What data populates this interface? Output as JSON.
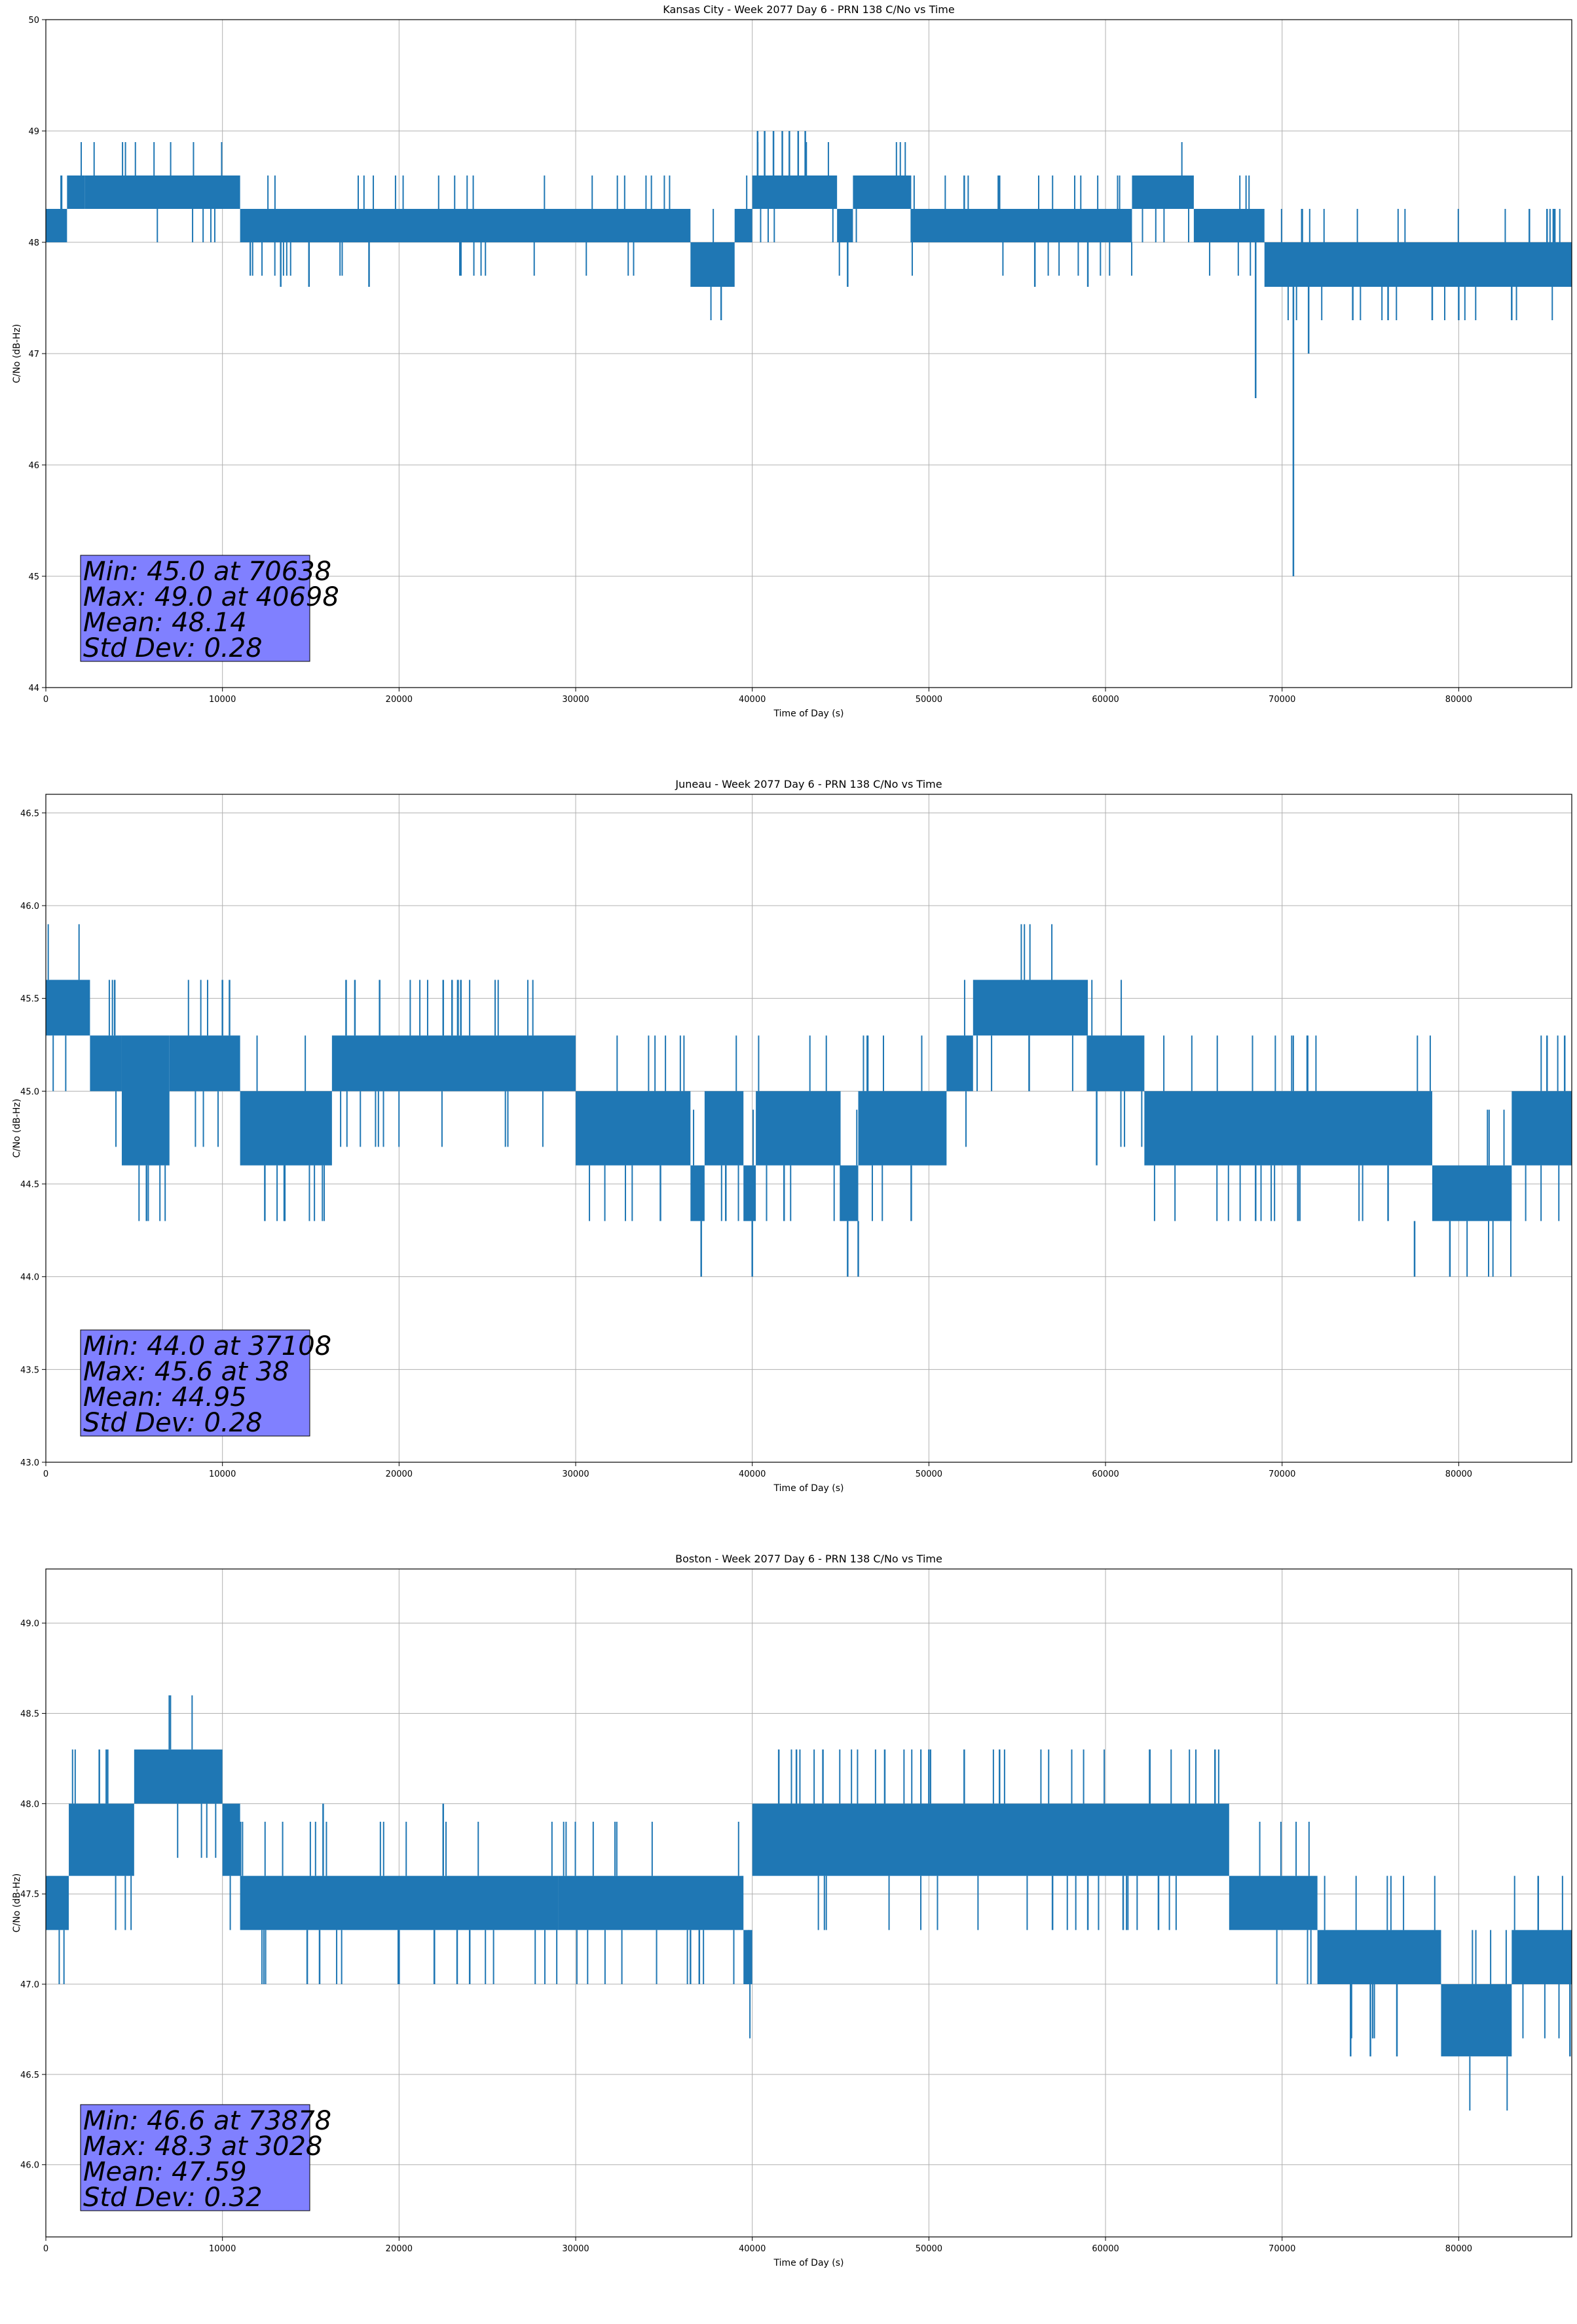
{
  "chart_data": [
    {
      "type": "line",
      "title": "Kansas City - Week 2077 Day 6 - PRN 138 C/No vs Time",
      "xlabel": "Time of Day (s)",
      "ylabel": "C/No (dB-Hz)",
      "xlim": [
        0,
        86400
      ],
      "ylim": [
        44,
        50
      ],
      "xticks": [
        0,
        10000,
        20000,
        30000,
        40000,
        50000,
        60000,
        70000,
        80000
      ],
      "xtick_labels": [
        "0",
        "10000",
        "20000",
        "30000",
        "40000",
        "50000",
        "60000",
        "70000",
        "80000"
      ],
      "yticks": [
        44,
        45,
        46,
        47,
        48,
        49,
        50
      ],
      "ytick_labels": [
        "44",
        "45",
        "46",
        "47",
        "48",
        "49",
        "50"
      ],
      "grid": true,
      "color": "#1f77b4",
      "stats_box_color": "#8080ff",
      "stats": [
        "Min: 45.0 at 70638",
        "Max: 49.0 at 40698",
        "Mean: 48.14",
        "Std Dev: 0.28"
      ],
      "bands": [
        {
          "x": [
            0,
            1200
          ],
          "lo": 48.0,
          "hi": 48.3
        },
        {
          "x": [
            1200,
            2200
          ],
          "lo": 48.3,
          "hi": 48.6
        },
        {
          "x": [
            2200,
            11000
          ],
          "lo": 48.3,
          "hi": 48.6
        },
        {
          "x": [
            11000,
            31000
          ],
          "lo": 48.0,
          "hi": 48.3
        },
        {
          "x": [
            31000,
            36500
          ],
          "lo": 48.0,
          "hi": 48.3
        },
        {
          "x": [
            36500,
            39000
          ],
          "lo": 47.6,
          "hi": 48.0
        },
        {
          "x": [
            39000,
            40000
          ],
          "lo": 48.0,
          "hi": 48.3
        },
        {
          "x": [
            40000,
            44800
          ],
          "lo": 48.3,
          "hi": 48.6
        },
        {
          "x": [
            44800,
            45700
          ],
          "lo": 48.0,
          "hi": 48.3
        },
        {
          "x": [
            45700,
            49000
          ],
          "lo": 48.3,
          "hi": 48.6
        },
        {
          "x": [
            49000,
            61500
          ],
          "lo": 48.0,
          "hi": 48.3
        },
        {
          "x": [
            61500,
            65000
          ],
          "lo": 48.3,
          "hi": 48.6
        },
        {
          "x": [
            65000,
            69000
          ],
          "lo": 48.0,
          "hi": 48.3
        },
        {
          "x": [
            69000,
            86400
          ],
          "lo": 47.6,
          "hi": 48.0
        }
      ],
      "spikes": [
        {
          "x": 40300,
          "from": 48.6,
          "to": 49.0
        },
        {
          "x": 40700,
          "from": 48.6,
          "to": 49.0
        },
        {
          "x": 41200,
          "from": 48.6,
          "to": 49.0
        },
        {
          "x": 41700,
          "from": 48.6,
          "to": 49.0
        },
        {
          "x": 42100,
          "from": 48.6,
          "to": 49.0
        },
        {
          "x": 42600,
          "from": 48.6,
          "to": 49.0
        },
        {
          "x": 43000,
          "from": 48.6,
          "to": 49.0
        },
        {
          "x": 68500,
          "from": 48.0,
          "to": 46.6
        },
        {
          "x": 70638,
          "from": 47.6,
          "to": 45.0
        },
        {
          "x": 71500,
          "from": 47.6,
          "to": 47.0
        },
        {
          "x": 13300,
          "from": 48.0,
          "to": 47.6
        },
        {
          "x": 14900,
          "from": 48.0,
          "to": 47.6
        },
        {
          "x": 18300,
          "from": 48.0,
          "to": 47.6
        },
        {
          "x": 45400,
          "from": 48.0,
          "to": 47.6
        },
        {
          "x": 56000,
          "from": 48.0,
          "to": 47.6
        },
        {
          "x": 59000,
          "from": 48.0,
          "to": 47.6
        },
        {
          "x": 74000,
          "from": 47.6,
          "to": 47.3
        },
        {
          "x": 76000,
          "from": 47.6,
          "to": 47.3
        },
        {
          "x": 78500,
          "from": 47.6,
          "to": 47.3
        },
        {
          "x": 80000,
          "from": 47.6,
          "to": 47.3
        },
        {
          "x": 83000,
          "from": 47.6,
          "to": 47.3
        },
        {
          "x": 84000,
          "from": 48.0,
          "to": 48.3
        },
        {
          "x": 85000,
          "from": 48.0,
          "to": 48.3
        },
        {
          "x": 52000,
          "from": 48.3,
          "to": 48.6
        },
        {
          "x": 54000,
          "from": 48.3,
          "to": 48.6
        }
      ]
    },
    {
      "type": "line",
      "title": "Juneau - Week 2077 Day 6 - PRN 138 C/No vs Time",
      "xlabel": "Time of Day (s)",
      "ylabel": "C/No (dB-Hz)",
      "xlim": [
        0,
        86400
      ],
      "ylim": [
        43.0,
        46.6
      ],
      "xticks": [
        0,
        10000,
        20000,
        30000,
        40000,
        50000,
        60000,
        70000,
        80000
      ],
      "xtick_labels": [
        "0",
        "10000",
        "20000",
        "30000",
        "40000",
        "50000",
        "60000",
        "70000",
        "80000"
      ],
      "yticks": [
        43.0,
        43.5,
        44.0,
        44.5,
        45.0,
        45.5,
        46.0,
        46.5
      ],
      "ytick_labels": [
        "43.0",
        "43.5",
        "44.0",
        "44.5",
        "45.0",
        "45.5",
        "46.0",
        "46.5"
      ],
      "grid": true,
      "color": "#1f77b4",
      "stats_box_color": "#8080ff",
      "stats": [
        "Min: 44.0 at 37108",
        "Max: 45.6 at 38",
        "Mean: 44.95",
        "Std Dev: 0.28"
      ],
      "bands": [
        {
          "x": [
            0,
            2500
          ],
          "lo": 45.3,
          "hi": 45.6
        },
        {
          "x": [
            2500,
            4300
          ],
          "lo": 45.0,
          "hi": 45.3
        },
        {
          "x": [
            4300,
            7000
          ],
          "lo": 44.6,
          "hi": 45.3
        },
        {
          "x": [
            7000,
            11000
          ],
          "lo": 45.0,
          "hi": 45.3
        },
        {
          "x": [
            11000,
            16200
          ],
          "lo": 44.6,
          "hi": 45.0
        },
        {
          "x": [
            16200,
            30000
          ],
          "lo": 45.0,
          "hi": 45.3
        },
        {
          "x": [
            30000,
            36500
          ],
          "lo": 44.6,
          "hi": 45.0
        },
        {
          "x": [
            36500,
            37300
          ],
          "lo": 44.3,
          "hi": 44.6
        },
        {
          "x": [
            37300,
            39500
          ],
          "lo": 44.6,
          "hi": 45.0
        },
        {
          "x": [
            39500,
            40200
          ],
          "lo": 44.3,
          "hi": 44.6
        },
        {
          "x": [
            40200,
            45000
          ],
          "lo": 44.6,
          "hi": 45.0
        },
        {
          "x": [
            45000,
            46000
          ],
          "lo": 44.3,
          "hi": 44.6
        },
        {
          "x": [
            46000,
            51000
          ],
          "lo": 44.6,
          "hi": 45.0
        },
        {
          "x": [
            51000,
            52500
          ],
          "lo": 45.0,
          "hi": 45.3
        },
        {
          "x": [
            52500,
            59000
          ],
          "lo": 45.3,
          "hi": 45.6
        },
        {
          "x": [
            59000,
            62200
          ],
          "lo": 45.0,
          "hi": 45.3
        },
        {
          "x": [
            62200,
            78500
          ],
          "lo": 44.6,
          "hi": 45.0
        },
        {
          "x": [
            78500,
            83000
          ],
          "lo": 44.3,
          "hi": 44.6
        },
        {
          "x": [
            83000,
            86400
          ],
          "lo": 44.6,
          "hi": 45.0
        }
      ],
      "spikes": [
        {
          "x": 3900,
          "from": 45.3,
          "to": 45.6
        },
        {
          "x": 5700,
          "from": 44.6,
          "to": 44.3
        },
        {
          "x": 10000,
          "from": 45.3,
          "to": 45.6
        },
        {
          "x": 10400,
          "from": 45.3,
          "to": 45.6
        },
        {
          "x": 12400,
          "from": 44.6,
          "to": 44.3
        },
        {
          "x": 13500,
          "from": 44.6,
          "to": 44.3
        },
        {
          "x": 17000,
          "from": 45.3,
          "to": 45.6
        },
        {
          "x": 17500,
          "from": 45.3,
          "to": 45.6
        },
        {
          "x": 18900,
          "from": 45.3,
          "to": 45.6
        },
        {
          "x": 22500,
          "from": 45.3,
          "to": 45.6
        },
        {
          "x": 23000,
          "from": 45.3,
          "to": 45.6
        },
        {
          "x": 23500,
          "from": 45.3,
          "to": 45.6
        },
        {
          "x": 34800,
          "from": 44.6,
          "to": 44.3
        },
        {
          "x": 37108,
          "from": 44.3,
          "to": 44.0
        },
        {
          "x": 38500,
          "from": 44.6,
          "to": 44.3
        },
        {
          "x": 40000,
          "from": 44.3,
          "to": 44.0
        },
        {
          "x": 41800,
          "from": 44.6,
          "to": 44.3
        },
        {
          "x": 45400,
          "from": 44.3,
          "to": 44.0
        },
        {
          "x": 46000,
          "from": 44.3,
          "to": 44.0
        },
        {
          "x": 49000,
          "from": 44.6,
          "to": 44.3
        },
        {
          "x": 59500,
          "from": 45.0,
          "to": 44.6
        },
        {
          "x": 68500,
          "from": 44.6,
          "to": 44.3
        },
        {
          "x": 71000,
          "from": 44.6,
          "to": 44.3
        },
        {
          "x": 76000,
          "from": 44.6,
          "to": 44.3
        },
        {
          "x": 77500,
          "from": 44.3,
          "to": 44.0
        },
        {
          "x": 79500,
          "from": 44.3,
          "to": 44.0
        },
        {
          "x": 85000,
          "from": 45.0,
          "to": 45.3
        },
        {
          "x": 86000,
          "from": 45.0,
          "to": 45.3
        }
      ]
    },
    {
      "type": "line",
      "title": "Boston - Week 2077 Day 6 - PRN 138 C/No vs Time",
      "xlabel": "Time of Day (s)",
      "ylabel": "C/No (dB-Hz)",
      "xlim": [
        0,
        86400
      ],
      "ylim": [
        45.6,
        49.3
      ],
      "xticks": [
        0,
        10000,
        20000,
        30000,
        40000,
        50000,
        60000,
        70000,
        80000
      ],
      "xtick_labels": [
        "0",
        "10000",
        "20000",
        "30000",
        "40000",
        "50000",
        "60000",
        "70000",
        "80000"
      ],
      "yticks": [
        46.0,
        46.5,
        47.0,
        47.5,
        48.0,
        48.5,
        49.0
      ],
      "ytick_labels": [
        "46.0",
        "46.5",
        "47.0",
        "47.5",
        "48.0",
        "48.5",
        "49.0"
      ],
      "grid": true,
      "color": "#1f77b4",
      "stats_box_color": "#8080ff",
      "stats": [
        "Min: 46.6 at 73878",
        "Max: 48.3 at 3028",
        "Mean: 47.59",
        "Std Dev: 0.32"
      ],
      "bands": [
        {
          "x": [
            0,
            1300
          ],
          "lo": 47.3,
          "hi": 47.6
        },
        {
          "x": [
            1300,
            5000
          ],
          "lo": 47.6,
          "hi": 48.0
        },
        {
          "x": [
            5000,
            10000
          ],
          "lo": 48.0,
          "hi": 48.3
        },
        {
          "x": [
            10000,
            11000
          ],
          "lo": 47.6,
          "hi": 48.0
        },
        {
          "x": [
            11000,
            29000
          ],
          "lo": 47.3,
          "hi": 47.6
        },
        {
          "x": [
            29000,
            39500
          ],
          "lo": 47.3,
          "hi": 47.6
        },
        {
          "x": [
            39500,
            40000
          ],
          "lo": 47.0,
          "hi": 47.3
        },
        {
          "x": [
            40000,
            67000
          ],
          "lo": 47.6,
          "hi": 48.0
        },
        {
          "x": [
            67000,
            72000
          ],
          "lo": 47.3,
          "hi": 47.6
        },
        {
          "x": [
            72000,
            79000
          ],
          "lo": 47.0,
          "hi": 47.3
        },
        {
          "x": [
            79000,
            83000
          ],
          "lo": 46.6,
          "hi": 47.0
        },
        {
          "x": [
            83000,
            86400
          ],
          "lo": 47.0,
          "hi": 47.3
        }
      ],
      "spikes": [
        {
          "x": 3028,
          "from": 48.0,
          "to": 48.3
        },
        {
          "x": 3500,
          "from": 48.0,
          "to": 48.3
        },
        {
          "x": 15700,
          "from": 47.6,
          "to": 48.0
        },
        {
          "x": 14800,
          "from": 47.3,
          "to": 47.0
        },
        {
          "x": 15500,
          "from": 47.3,
          "to": 47.0
        },
        {
          "x": 20000,
          "from": 47.3,
          "to": 47.0
        },
        {
          "x": 22000,
          "from": 47.3,
          "to": 47.0
        },
        {
          "x": 24000,
          "from": 47.3,
          "to": 47.0
        },
        {
          "x": 22500,
          "from": 47.6,
          "to": 48.0
        },
        {
          "x": 36500,
          "from": 47.3,
          "to": 47.0
        },
        {
          "x": 37000,
          "from": 47.3,
          "to": 47.0
        },
        {
          "x": 39800,
          "from": 47.3,
          "to": 47.0
        },
        {
          "x": 41500,
          "from": 48.0,
          "to": 48.3
        },
        {
          "x": 42500,
          "from": 48.0,
          "to": 48.3
        },
        {
          "x": 44000,
          "from": 48.0,
          "to": 48.3
        },
        {
          "x": 47500,
          "from": 48.0,
          "to": 48.3
        },
        {
          "x": 50000,
          "from": 48.0,
          "to": 48.3
        },
        {
          "x": 52000,
          "from": 48.0,
          "to": 48.3
        },
        {
          "x": 54000,
          "from": 48.0,
          "to": 48.3
        },
        {
          "x": 62500,
          "from": 48.0,
          "to": 48.3
        },
        {
          "x": 66200,
          "from": 48.0,
          "to": 48.3
        },
        {
          "x": 57000,
          "from": 47.6,
          "to": 47.3
        },
        {
          "x": 59000,
          "from": 47.6,
          "to": 47.3
        },
        {
          "x": 61000,
          "from": 47.6,
          "to": 47.3
        },
        {
          "x": 63000,
          "from": 47.6,
          "to": 47.3
        },
        {
          "x": 73878,
          "from": 47.0,
          "to": 46.6
        },
        {
          "x": 75000,
          "from": 47.0,
          "to": 46.6
        },
        {
          "x": 76500,
          "from": 47.0,
          "to": 46.6
        },
        {
          "x": 84500,
          "from": 47.3,
          "to": 47.6
        },
        {
          "x": 86300,
          "from": 47.0,
          "to": 46.6
        }
      ]
    }
  ]
}
